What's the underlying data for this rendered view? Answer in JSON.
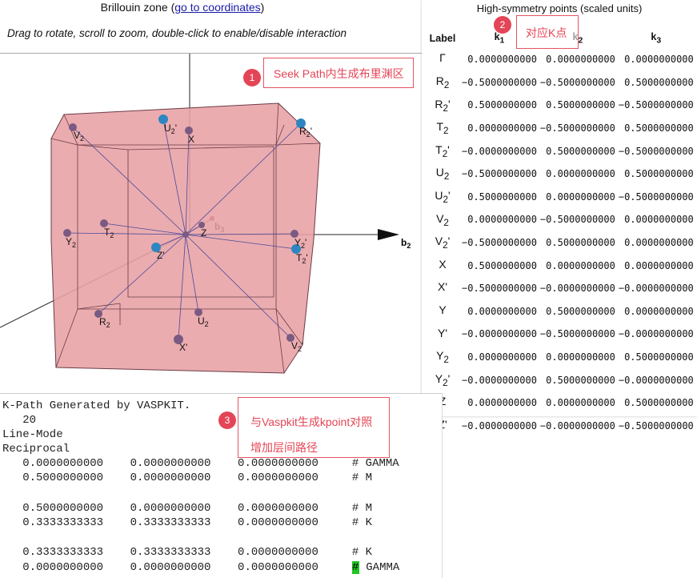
{
  "header": {
    "title_prefix": "Brillouin zone (",
    "title_link": "go to coordinates",
    "title_suffix": ")",
    "hint": "Drag to rotate, scroll to zoom, double-click to enable/disable interaction"
  },
  "viewer": {
    "axis_b2": "b",
    "axis_b2_sub": "2",
    "axis_b3": "b",
    "axis_b3_sub": "3",
    "points": [
      {
        "id": "u2p",
        "text": "U",
        "sub": "2",
        "prime": "'"
      },
      {
        "id": "x",
        "text": "X",
        "sub": "",
        "prime": ""
      },
      {
        "id": "v2",
        "text": "V",
        "sub": "2",
        "prime": ""
      },
      {
        "id": "r2p",
        "text": "R",
        "sub": "2",
        "prime": "'"
      },
      {
        "id": "t2",
        "text": "T",
        "sub": "2",
        "prime": ""
      },
      {
        "id": "z",
        "text": "Z",
        "sub": "",
        "prime": ""
      },
      {
        "id": "y2",
        "text": "Y",
        "sub": "2",
        "prime": ""
      },
      {
        "id": "zp",
        "text": "Z",
        "sub": "",
        "prime": "'"
      },
      {
        "id": "y2p",
        "text": "Y",
        "sub": "2",
        "prime": "'"
      },
      {
        "id": "t2p",
        "text": "T",
        "sub": "2",
        "prime": "'"
      },
      {
        "id": "r2",
        "text": "R",
        "sub": "2",
        "prime": ""
      },
      {
        "id": "u2",
        "text": "U",
        "sub": "2",
        "prime": ""
      },
      {
        "id": "xp",
        "text": "X",
        "sub": "",
        "prime": "'"
      },
      {
        "id": "v2p",
        "text": "V",
        "sub": "2",
        "prime": "'"
      }
    ]
  },
  "hs_table": {
    "title": "High-symmetry points (scaled units)",
    "headers": [
      "Label",
      "k",
      "k",
      "k"
    ],
    "header_subs": [
      "",
      "1",
      "2",
      "3"
    ],
    "rows": [
      {
        "label": "Γ",
        "sub": "",
        "prime": "",
        "k1": "0.0000000000",
        "k2": "0.0000000000",
        "k3": "0.0000000000"
      },
      {
        "label": "R",
        "sub": "2",
        "prime": "",
        "k1": "−0.5000000000",
        "k2": "−0.5000000000",
        "k3": "0.5000000000"
      },
      {
        "label": "R",
        "sub": "2",
        "prime": "'",
        "k1": "0.5000000000",
        "k2": "0.5000000000",
        "k3": "−0.5000000000"
      },
      {
        "label": "T",
        "sub": "2",
        "prime": "",
        "k1": "0.0000000000",
        "k2": "−0.5000000000",
        "k3": "0.5000000000"
      },
      {
        "label": "T",
        "sub": "2",
        "prime": "'",
        "k1": "−0.0000000000",
        "k2": "0.5000000000",
        "k3": "−0.5000000000"
      },
      {
        "label": "U",
        "sub": "2",
        "prime": "",
        "k1": "−0.5000000000",
        "k2": "0.0000000000",
        "k3": "0.5000000000"
      },
      {
        "label": "U",
        "sub": "2",
        "prime": "'",
        "k1": "0.5000000000",
        "k2": "0.0000000000",
        "k3": "−0.5000000000"
      },
      {
        "label": "V",
        "sub": "2",
        "prime": "",
        "k1": "0.0000000000",
        "k2": "−0.5000000000",
        "k3": "0.0000000000"
      },
      {
        "label": "V",
        "sub": "2",
        "prime": "'",
        "k1": "−0.5000000000",
        "k2": "0.5000000000",
        "k3": "0.0000000000"
      },
      {
        "label": "X",
        "sub": "",
        "prime": "",
        "k1": "0.5000000000",
        "k2": "0.0000000000",
        "k3": "0.0000000000"
      },
      {
        "label": "X",
        "sub": "",
        "prime": "'",
        "k1": "−0.5000000000",
        "k2": "−0.0000000000",
        "k3": "−0.0000000000"
      },
      {
        "label": "Y",
        "sub": "",
        "prime": "",
        "k1": "0.0000000000",
        "k2": "0.5000000000",
        "k3": "0.0000000000"
      },
      {
        "label": "Y",
        "sub": "",
        "prime": "'",
        "k1": "−0.0000000000",
        "k2": "−0.5000000000",
        "k3": "−0.0000000000"
      },
      {
        "label": "Y",
        "sub": "2",
        "prime": "",
        "k1": "0.0000000000",
        "k2": "0.0000000000",
        "k3": "0.5000000000"
      },
      {
        "label": "Y",
        "sub": "2",
        "prime": "'",
        "k1": "−0.0000000000",
        "k2": "0.5000000000",
        "k3": "−0.0000000000"
      },
      {
        "label": "Z",
        "sub": "",
        "prime": "",
        "k1": "0.0000000000",
        "k2": "0.0000000000",
        "k3": "0.5000000000"
      },
      {
        "label": "Z",
        "sub": "",
        "prime": "'",
        "k1": "−0.0000000000",
        "k2": "−0.0000000000",
        "k3": "−0.5000000000"
      }
    ]
  },
  "console": {
    "lines": [
      "K-Path Generated by VASPKIT.",
      "   20",
      "Line-Mode",
      "Reciprocal",
      "   0.0000000000    0.0000000000    0.0000000000     # GAMMA",
      "   0.5000000000    0.0000000000    0.0000000000     # M",
      "",
      "   0.5000000000    0.0000000000    0.0000000000     # M",
      "   0.3333333333    0.3333333333    0.0000000000     # K",
      "",
      "   0.3333333333    0.3333333333    0.0000000000     # K"
    ],
    "last_line_prefix": "   0.0000000000    0.0000000000    0.0000000000     ",
    "last_line_mark": "#",
    "last_line_suffix": " GAMMA"
  },
  "annotations": {
    "a1_num": "1",
    "a1_text": "Seek Path内生成布里渊区",
    "a2_num": "2",
    "a2_text": "对应K点",
    "a3_num": "3",
    "a3_line1": "与Vaspkit生成kpoint对照",
    "a3_line2": "增加层间路径"
  },
  "colors": {
    "bz_fill": "#e8a0a4",
    "bz_edge": "#6a3b46",
    "point": "#7a5a82",
    "highlight_point": "#2e86c1",
    "annotation": "#e44556",
    "link": "#1a1aa6",
    "console_mark": "#22c422"
  }
}
